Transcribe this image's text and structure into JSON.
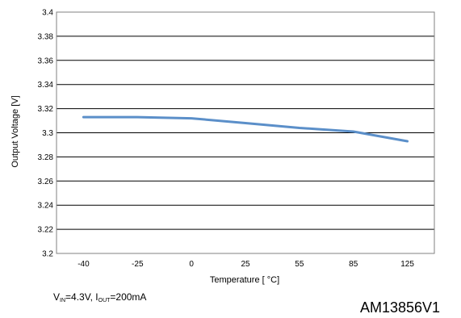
{
  "chart_data": {
    "type": "line",
    "title": "",
    "xlabel": "Temperature [ °C]",
    "ylabel": "Output Voltage [V]",
    "categories": [
      "-40",
      "-25",
      "0",
      "25",
      "55",
      "85",
      "125"
    ],
    "series": [
      {
        "values": [
          3.313,
          3.313,
          3.312,
          3.308,
          3.304,
          3.301,
          3.293
        ],
        "color": "#5b8fc9"
      }
    ],
    "ylim": [
      3.2,
      3.4
    ],
    "yticks": [
      3.2,
      3.22,
      3.24,
      3.26,
      3.28,
      3.3,
      3.32,
      3.34,
      3.36,
      3.38,
      3.4
    ],
    "ytick_labels": [
      "3.2",
      "3.22",
      "3.24",
      "3.26",
      "3.28",
      "3.3",
      "3.32",
      "3.34",
      "3.36",
      "3.38",
      "3.4"
    ],
    "grid": true,
    "legend": "none"
  },
  "condition": {
    "v": "V",
    "v_sub": "IN",
    "v_val": "=4.3V, ",
    "i": "I",
    "i_sub": "OUT",
    "i_val": "=200mA"
  },
  "figure_code": "AM13856V1"
}
